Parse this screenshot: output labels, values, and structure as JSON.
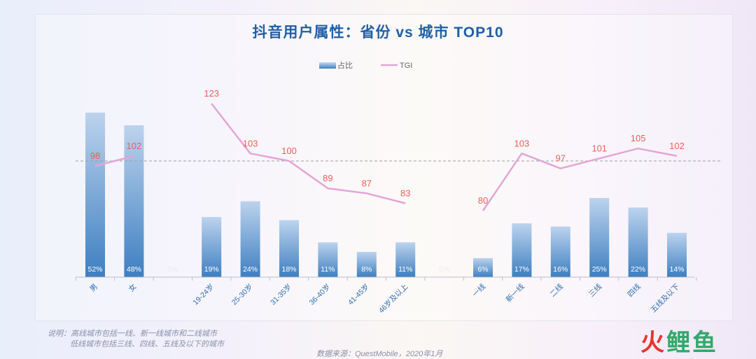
{
  "title": "抖音用户属性：省份 vs 城市 TOP10",
  "legend": {
    "bar_label": "占比",
    "line_label": "TGI"
  },
  "note": {
    "line1": "说明：高线城市包括一线、新一线城市和二线城市",
    "line2": "低线城市包括三线、四线、五线及以下的城市"
  },
  "source": "数据来源：QuestMobile，2020年1月",
  "logo": {
    "part1": "火",
    "part2": "鲤鱼"
  },
  "colors": {
    "bar_top": "#bcd3ee",
    "bar_bottom": "#3e7fc0",
    "line": "#e3a5d6",
    "tgi_label": "#e8615a",
    "ref_line": "#9aa0a6",
    "title": "#1f5fa6"
  },
  "chart_data": {
    "type": "bar+line",
    "title": "抖音用户属性：省份 vs 城市 TOP10",
    "categories": [
      "男",
      "女",
      "",
      "19-24岁",
      "25-30岁",
      "31-35岁",
      "36-40岁",
      "41-45岁",
      "46岁及以上",
      "",
      "一线",
      "新一线",
      "二线",
      "三线",
      "四线",
      "五线及以下"
    ],
    "series": [
      {
        "name": "占比",
        "type": "bar",
        "values": [
          52,
          48,
          0,
          19,
          24,
          18,
          11,
          8,
          11,
          0,
          6,
          17,
          16,
          25,
          22,
          14
        ],
        "labels": [
          "52%",
          "48%",
          "0%",
          "19%",
          "24%",
          "18%",
          "11%",
          "8%",
          "11%",
          "0%",
          "6%",
          "17%",
          "16%",
          "25%",
          "22%",
          "14%"
        ]
      },
      {
        "name": "TGI",
        "type": "line",
        "segments": [
          {
            "start": 0,
            "values": [
              98,
              102
            ]
          },
          {
            "start": 3,
            "values": [
              123,
              103,
              100,
              89,
              87,
              83
            ]
          },
          {
            "start": 10,
            "values": [
              80,
              103,
              97,
              101,
              105,
              102
            ]
          }
        ]
      }
    ],
    "reference_line": {
      "tgi": 100,
      "style": "dashed"
    },
    "legend_position": "top-center",
    "grid": false
  }
}
